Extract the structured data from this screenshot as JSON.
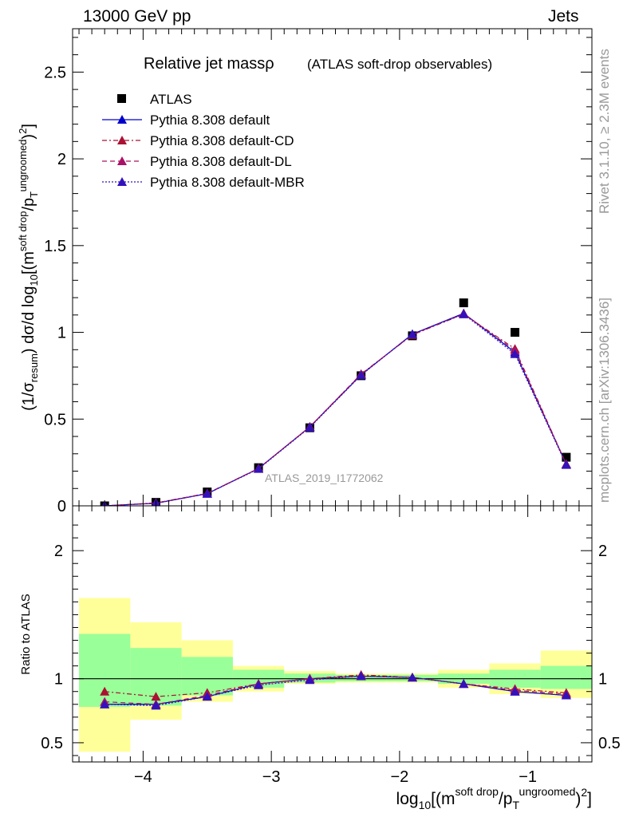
{
  "header": {
    "beam": "13000 GeV pp",
    "process": "Jets"
  },
  "side_labels": {
    "rivet": "Rivet 3.1.10, ≥ 2.3M events",
    "mcplots": "mcplots.cern.ch [arXiv:1306.3436]"
  },
  "title": {
    "main": "Relative jet massρ",
    "sub": "(ATLAS soft-drop observables)"
  },
  "watermark": "ATLAS_2019_I1772062",
  "colors": {
    "atlas": "#000000",
    "default": "#0000cc",
    "cd": "#aa1133",
    "dl": "#aa1166",
    "mbr": "#3311bb",
    "band_inner": "#99ff99",
    "band_outer": "#ffff99"
  },
  "chart_data": [
    {
      "type": "scatter",
      "panel": "main",
      "ylabel": "(1/σresum) dσ/d log10[(m soft drop/pT ungroomed)2]",
      "xlim": [
        -4.55,
        -0.5
      ],
      "ylim": [
        0,
        2.75
      ],
      "y_ticks": [
        0,
        0.5,
        1,
        1.5,
        2,
        2.5
      ],
      "y_tick_labels": [
        "0",
        "0.5",
        "1",
        "1.5",
        "2",
        "2.5"
      ],
      "x": [
        -4.3,
        -3.9,
        -3.5,
        -3.1,
        -2.7,
        -2.3,
        -1.9,
        -1.5,
        -1.1,
        -0.7
      ],
      "series": [
        {
          "name": "ATLAS",
          "marker": "square",
          "line": "none",
          "values": [
            0.0,
            0.02,
            0.08,
            0.22,
            0.45,
            0.75,
            0.98,
            1.17,
            1.0,
            0.28
          ]
        },
        {
          "name": "Pythia 8.308 default",
          "marker": "triangle",
          "line": "solid",
          "values": [
            0.0,
            0.015,
            0.07,
            0.215,
            0.455,
            0.755,
            0.99,
            1.11,
            0.885,
            0.24
          ]
        },
        {
          "name": "Pythia 8.308 default-CD",
          "marker": "triangle",
          "line": "dashdot",
          "values": [
            0.0,
            0.017,
            0.072,
            0.215,
            0.455,
            0.76,
            0.985,
            1.105,
            0.905,
            0.24
          ]
        },
        {
          "name": "Pythia 8.308 default-DL",
          "marker": "triangle",
          "line": "dashed",
          "values": [
            0.0,
            0.016,
            0.071,
            0.216,
            0.456,
            0.758,
            0.987,
            1.108,
            0.895,
            0.24
          ]
        },
        {
          "name": "Pythia 8.308 default-MBR",
          "marker": "triangle",
          "line": "dotted",
          "values": [
            0.0,
            0.015,
            0.07,
            0.213,
            0.452,
            0.753,
            0.99,
            1.105,
            0.875,
            0.236
          ]
        }
      ]
    },
    {
      "type": "line",
      "panel": "ratio",
      "ylabel": "Ratio to ATLAS",
      "xlabel": "log10[(m soft drop/pT ungroomed)2]",
      "xlim": [
        -4.55,
        -0.5
      ],
      "ylim": [
        0.35,
        2.35
      ],
      "x_ticks": [
        -4,
        -3,
        -2,
        -1
      ],
      "x_tick_labels": [
        "−4",
        "−3",
        "−2",
        "−1"
      ],
      "y_ticks": [
        0.5,
        1,
        2
      ],
      "y_tick_labels": [
        "0.5",
        "1",
        "2"
      ],
      "x": [
        -4.3,
        -3.9,
        -3.5,
        -3.1,
        -2.7,
        -2.3,
        -1.9,
        -1.5,
        -1.1,
        -0.7
      ],
      "bin_edges": [
        -4.5,
        -4.1,
        -3.7,
        -3.3,
        -2.9,
        -2.5,
        -2.1,
        -1.7,
        -1.3,
        -0.9,
        -0.5
      ],
      "inner_band": [
        [
          0.78,
          1.35
        ],
        [
          0.79,
          1.24
        ],
        [
          0.87,
          1.17
        ],
        [
          0.93,
          1.07
        ],
        [
          0.97,
          1.04
        ],
        [
          0.98,
          1.03
        ],
        [
          0.98,
          1.03
        ],
        [
          0.96,
          1.04
        ],
        [
          0.93,
          1.07
        ],
        [
          0.92,
          1.1
        ]
      ],
      "outer_band": [
        [
          0.43,
          1.63
        ],
        [
          0.68,
          1.44
        ],
        [
          0.82,
          1.3
        ],
        [
          0.9,
          1.1
        ],
        [
          0.96,
          1.06
        ],
        [
          0.97,
          1.04
        ],
        [
          0.97,
          1.04
        ],
        [
          0.93,
          1.07
        ],
        [
          0.88,
          1.12
        ],
        [
          0.85,
          1.22
        ]
      ],
      "series": [
        {
          "name": "Pythia 8.308 default",
          "values": [
            0.8,
            0.8,
            0.86,
            0.96,
            1.0,
            1.02,
            1.01,
            0.96,
            0.9,
            0.87
          ]
        },
        {
          "name": "Pythia 8.308 default-CD",
          "values": [
            0.9,
            0.86,
            0.89,
            0.96,
            1.0,
            1.03,
            1.01,
            0.96,
            0.92,
            0.89
          ]
        },
        {
          "name": "Pythia 8.308 default-DL",
          "values": [
            0.82,
            0.8,
            0.87,
            0.96,
            1.0,
            1.02,
            1.01,
            0.96,
            0.91,
            0.88
          ]
        },
        {
          "name": "Pythia 8.308 default-MBR",
          "values": [
            0.8,
            0.79,
            0.86,
            0.95,
            0.99,
            1.02,
            1.01,
            0.96,
            0.9,
            0.87
          ]
        }
      ]
    }
  ]
}
